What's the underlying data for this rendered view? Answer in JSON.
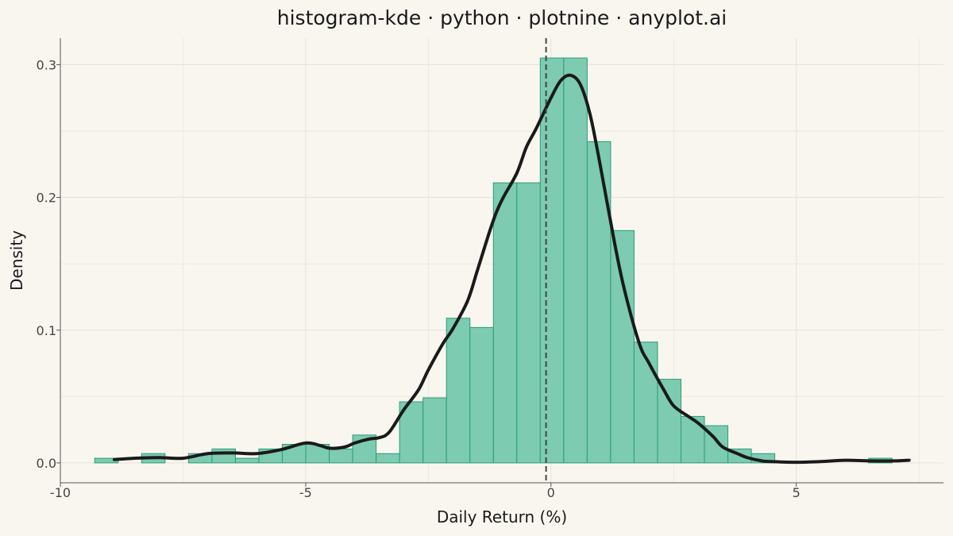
{
  "chart_data": {
    "type": "bar",
    "title": "histogram-kde · python · plotnine · anyplot.ai",
    "xlabel": "Daily Return (%)",
    "ylabel": "Density",
    "xlim": [
      -10,
      8
    ],
    "ylim": [
      -0.015,
      0.32
    ],
    "x_ticks": [
      -10,
      -5,
      0,
      5
    ],
    "x_tick_labels": [
      "-10",
      "-5",
      "0",
      "5"
    ],
    "y_ticks": [
      0,
      0.1,
      0.2,
      0.3
    ],
    "y_tick_labels": [
      "0.0",
      "0.1",
      "0.2",
      "0.3"
    ],
    "bin_width": 0.478,
    "bin_start": -9.3,
    "histogram_density": [
      0.0035,
      0,
      0.007,
      0,
      0.007,
      0.0105,
      0.0035,
      0.0105,
      0.014,
      0.014,
      0.0105,
      0.021,
      0.007,
      0.046,
      0.049,
      0.109,
      0.102,
      0.211,
      0.211,
      0.305,
      0.305,
      0.242,
      0.175,
      0.091,
      0.063,
      0.035,
      0.028,
      0.0105,
      0.007,
      0,
      0,
      0,
      0,
      0.0035,
      0,
      0,
      0,
      0.0035
    ],
    "kde": {
      "x": [
        -8.9,
        -8.5,
        -8.0,
        -7.5,
        -7.0,
        -6.5,
        -6.0,
        -5.5,
        -5.0,
        -4.7,
        -4.5,
        -4.2,
        -4.0,
        -3.7,
        -3.5,
        -3.3,
        -3.0,
        -2.7,
        -2.5,
        -2.2,
        -2.0,
        -1.7,
        -1.5,
        -1.2,
        -1.0,
        -0.7,
        -0.5,
        -0.3,
        0.0,
        0.2,
        0.4,
        0.6,
        0.8,
        1.0,
        1.3,
        1.5,
        1.8,
        2.0,
        2.3,
        2.5,
        2.8,
        3.0,
        3.3,
        3.5,
        3.8,
        4.0,
        4.3,
        4.5,
        5.0,
        5.5,
        6.0,
        6.5,
        7.0,
        7.3
      ],
      "y": [
        0.0025,
        0.0035,
        0.004,
        0.0035,
        0.007,
        0.0075,
        0.007,
        0.01,
        0.015,
        0.013,
        0.011,
        0.012,
        0.015,
        0.018,
        0.019,
        0.023,
        0.04,
        0.055,
        0.07,
        0.09,
        0.101,
        0.122,
        0.145,
        0.18,
        0.198,
        0.218,
        0.238,
        0.252,
        0.275,
        0.288,
        0.292,
        0.285,
        0.262,
        0.225,
        0.165,
        0.13,
        0.09,
        0.075,
        0.055,
        0.043,
        0.035,
        0.03,
        0.02,
        0.012,
        0.007,
        0.004,
        0.0015,
        0.001,
        0.0005,
        0.001,
        0.002,
        0.0015,
        0.0015,
        0.002
      ]
    },
    "vline_x": -0.1,
    "grid": true,
    "colors": {
      "background": "#f9f6f0",
      "bar_fill": "#7dcbb0",
      "bar_stroke": "#2a9d77",
      "kde_line": "#1a1a1a",
      "vline": "#444444",
      "grid": "#e6e2da",
      "axis": "#555555"
    }
  }
}
